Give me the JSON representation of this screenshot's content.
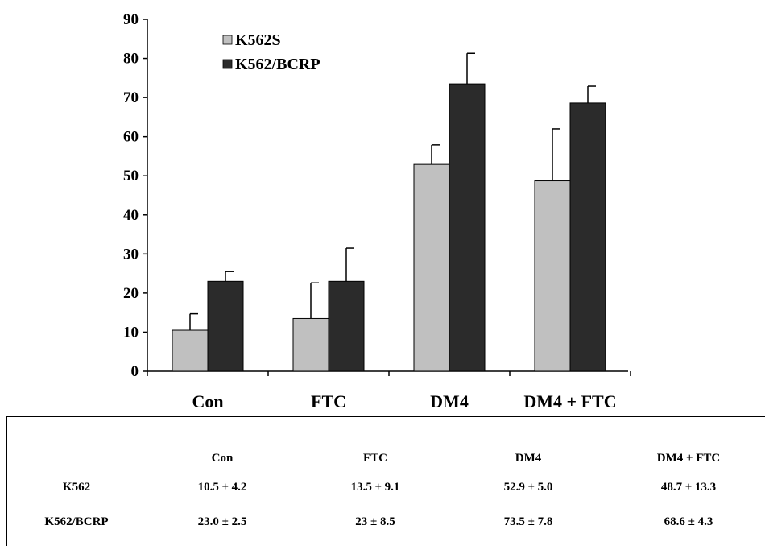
{
  "chart_data": {
    "type": "bar",
    "categories": [
      "Con",
      "FTC",
      "DM4",
      "DM4 + FTC"
    ],
    "series": [
      {
        "name": "K562S",
        "color": "#c0c0c0",
        "values": [
          10.5,
          13.5,
          52.9,
          48.7
        ],
        "errors": [
          4.2,
          9.1,
          5.0,
          13.3
        ]
      },
      {
        "name": "K562/BCRP",
        "color": "#2b2b2b",
        "values": [
          23.0,
          23.0,
          73.5,
          68.6
        ],
        "errors": [
          2.5,
          8.5,
          7.8,
          4.3
        ]
      }
    ],
    "ylim": [
      0,
      90
    ],
    "yticks": [
      0,
      10,
      20,
      30,
      40,
      50,
      60,
      70,
      80,
      90
    ],
    "legend": "top-left",
    "grid": false
  },
  "table": {
    "headers": [
      "",
      "Con",
      "FTC",
      "DM4",
      "DM4 + FTC"
    ],
    "rows": [
      {
        "label": "K562",
        "cells": [
          "10.5 ± 4.2",
          "13.5 ± 9.1",
          "52.9 ± 5.0",
          "48.7 ± 13.3"
        ]
      },
      {
        "label": "K562/BCRP",
        "cells": [
          "23.0 ± 2.5",
          "23 ± 8.5",
          "73.5 ± 7.8",
          "68.6 ± 4.3"
        ]
      }
    ]
  }
}
